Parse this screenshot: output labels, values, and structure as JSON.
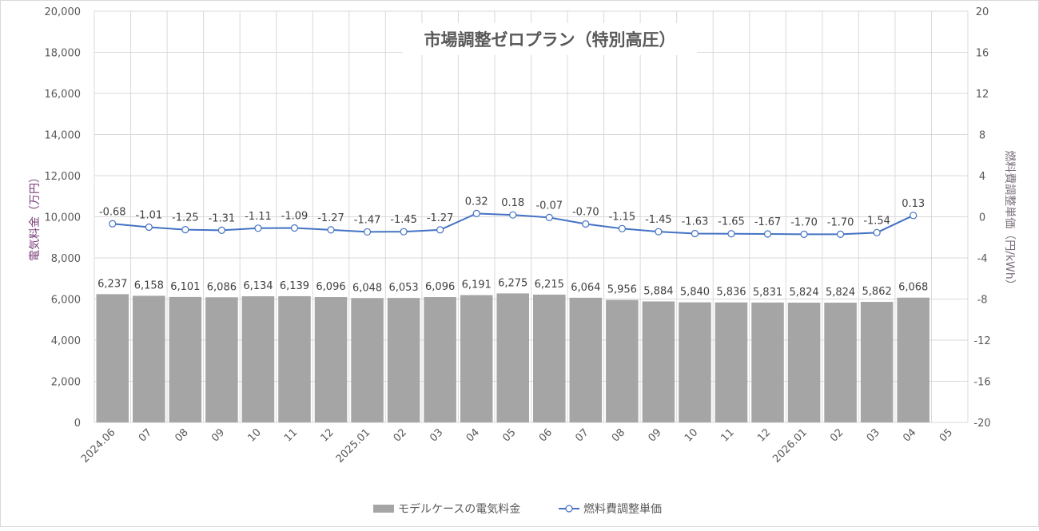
{
  "chart_data": {
    "type": "bar+line",
    "title": "市場調整ゼロプラン（特別高圧）",
    "ylabel": "電気料金（万円）",
    "y2label": "燃料費調整単価（円/kWh）",
    "ylim": [
      0,
      20000
    ],
    "y2lim": [
      -20,
      20
    ],
    "yticks": [
      0,
      2000,
      4000,
      6000,
      8000,
      10000,
      12000,
      14000,
      16000,
      18000,
      20000
    ],
    "y2ticks": [
      -20,
      -16,
      -12,
      -8,
      -4,
      0,
      4,
      8,
      12,
      16,
      20
    ],
    "grid": true,
    "legend_position": "bottom",
    "categories": [
      "2024.06",
      "07",
      "08",
      "09",
      "10",
      "11",
      "12",
      "2025.01",
      "02",
      "03",
      "04",
      "05",
      "06",
      "07",
      "08",
      "09",
      "10",
      "11",
      "12",
      "2026.01",
      "02",
      "03",
      "04",
      "05"
    ],
    "series": [
      {
        "name": "モデルケースの電気料金",
        "type": "bar",
        "axis": "left",
        "color": "#a5a5a5",
        "values": [
          6237,
          6158,
          6101,
          6086,
          6134,
          6139,
          6096,
          6048,
          6053,
          6096,
          6191,
          6275,
          6215,
          6064,
          5956,
          5884,
          5840,
          5836,
          5831,
          5824,
          5824,
          5862,
          6068,
          null
        ]
      },
      {
        "name": "燃料費調整単価",
        "type": "line",
        "axis": "right",
        "color": "#4472c4",
        "values": [
          -0.68,
          -1.01,
          -1.25,
          -1.31,
          -1.11,
          -1.09,
          -1.27,
          -1.47,
          -1.45,
          -1.27,
          0.32,
          0.18,
          -0.07,
          -0.7,
          -1.15,
          -1.45,
          -1.63,
          -1.65,
          -1.67,
          -1.7,
          -1.7,
          -1.54,
          0.13,
          null
        ]
      }
    ]
  }
}
